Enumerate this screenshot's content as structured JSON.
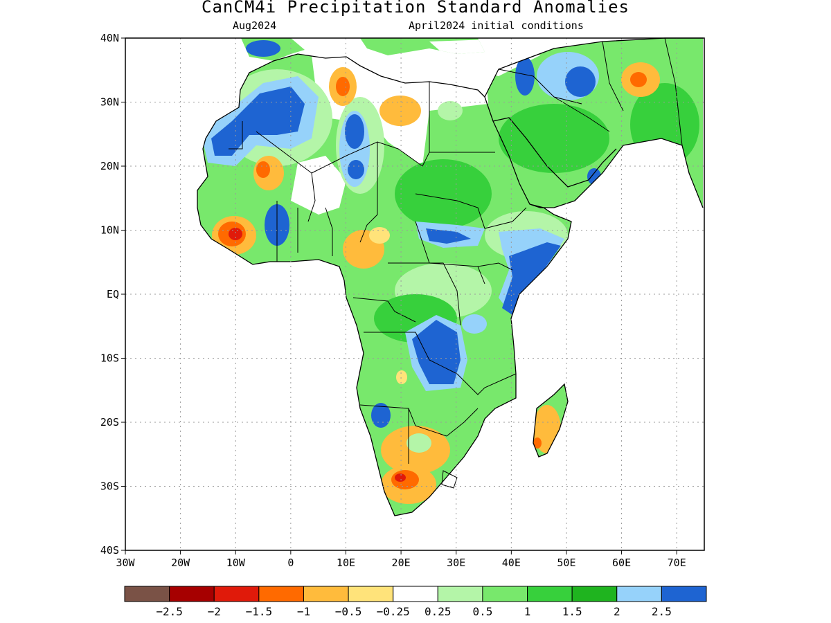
{
  "title": "CanCM4i Precipitation Standard Anomalies",
  "subtitle_left": "Aug2024",
  "subtitle_right": "April2024 initial conditions",
  "map": {
    "lon_range": [
      -30,
      75
    ],
    "lat_range": [
      -40,
      40
    ],
    "x_ticks": [
      {
        "value": -30,
        "label": "30W"
      },
      {
        "value": -20,
        "label": "20W"
      },
      {
        "value": -10,
        "label": "10W"
      },
      {
        "value": 0,
        "label": "0"
      },
      {
        "value": 10,
        "label": "10E"
      },
      {
        "value": 20,
        "label": "20E"
      },
      {
        "value": 30,
        "label": "30E"
      },
      {
        "value": 40,
        "label": "40E"
      },
      {
        "value": 50,
        "label": "50E"
      },
      {
        "value": 60,
        "label": "60E"
      },
      {
        "value": 70,
        "label": "70E"
      }
    ],
    "y_ticks": [
      {
        "value": 40,
        "label": "40N"
      },
      {
        "value": 30,
        "label": "30N"
      },
      {
        "value": 20,
        "label": "20N"
      },
      {
        "value": 10,
        "label": "10N"
      },
      {
        "value": 0,
        "label": "EQ"
      },
      {
        "value": -10,
        "label": "10S"
      },
      {
        "value": -20,
        "label": "20S"
      },
      {
        "value": -30,
        "label": "30S"
      },
      {
        "value": -40,
        "label": "40S"
      }
    ],
    "grid": "dotted"
  },
  "colorbar": {
    "colors": [
      "#7a5246",
      "#a60000",
      "#e01a0a",
      "#ff6a00",
      "#ffbb3c",
      "#ffe37a",
      "#ffffff",
      "#b4f5a8",
      "#78e86c",
      "#37d03c",
      "#1fb41f",
      "#96d2fa",
      "#1e64d2"
    ],
    "labels": [
      "−2.5",
      "−2",
      "−1.5",
      "−1",
      "−0.5",
      "−0.25",
      "0.25",
      "0.5",
      "1",
      "1.5",
      "2",
      "2.5"
    ]
  },
  "colors": {
    "land_base": "#78e86c",
    "outline": "#000000"
  }
}
